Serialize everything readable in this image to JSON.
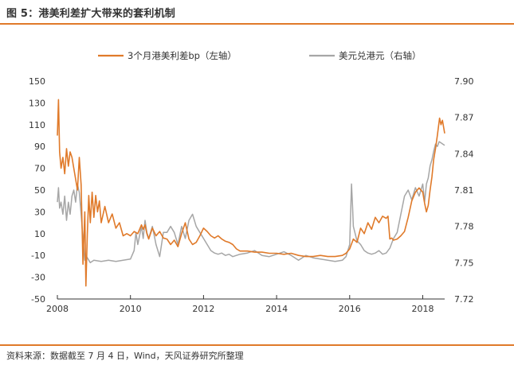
{
  "figure": {
    "title": "图 5：港美利差扩大带来的套利机制",
    "source": "资料来源：数据截至 7 月 4 日，Wind，天风证券研究所整理"
  },
  "colors": {
    "spread": "#e07a2a",
    "hkd": "#a6a6a6",
    "axis": "#333333",
    "rule": "#e07a2a"
  },
  "chart_data": {
    "type": "line",
    "x_ticks": [
      "2008",
      "2010",
      "2012",
      "2014",
      "2016",
      "2018"
    ],
    "x_range": [
      2008,
      2018.6
    ],
    "y_left": {
      "ticks": [
        "150",
        "130",
        "110",
        "90",
        "70",
        "50",
        "30",
        "10",
        "-10",
        "-30",
        "-50"
      ],
      "range": [
        -50,
        150
      ]
    },
    "y_right": {
      "ticks": [
        "7.90",
        "7.87",
        "7.84",
        "7.81",
        "7.78",
        "7.75",
        "7.72"
      ],
      "range": [
        7.72,
        7.9
      ]
    },
    "legend_position": "top",
    "series": [
      {
        "name": "3个月港美利差bp（左轴）",
        "axis": "left",
        "points": [
          [
            2008.0,
            100
          ],
          [
            2008.03,
            133
          ],
          [
            2008.06,
            85
          ],
          [
            2008.1,
            70
          ],
          [
            2008.15,
            80
          ],
          [
            2008.2,
            65
          ],
          [
            2008.25,
            88
          ],
          [
            2008.3,
            72
          ],
          [
            2008.35,
            85
          ],
          [
            2008.4,
            80
          ],
          [
            2008.45,
            70
          ],
          [
            2008.5,
            60
          ],
          [
            2008.55,
            50
          ],
          [
            2008.6,
            80
          ],
          [
            2008.65,
            55
          ],
          [
            2008.7,
            -18
          ],
          [
            2008.75,
            30
          ],
          [
            2008.78,
            -38
          ],
          [
            2008.82,
            10
          ],
          [
            2008.86,
            45
          ],
          [
            2008.9,
            20
          ],
          [
            2008.95,
            48
          ],
          [
            2009.0,
            25
          ],
          [
            2009.05,
            45
          ],
          [
            2009.1,
            30
          ],
          [
            2009.15,
            40
          ],
          [
            2009.2,
            20
          ],
          [
            2009.3,
            35
          ],
          [
            2009.4,
            20
          ],
          [
            2009.5,
            28
          ],
          [
            2009.6,
            15
          ],
          [
            2009.7,
            20
          ],
          [
            2009.8,
            8
          ],
          [
            2009.9,
            10
          ],
          [
            2010.0,
            8
          ],
          [
            2010.1,
            12
          ],
          [
            2010.2,
            10
          ],
          [
            2010.3,
            18
          ],
          [
            2010.35,
            14
          ],
          [
            2010.4,
            18
          ],
          [
            2010.45,
            10
          ],
          [
            2010.5,
            5
          ],
          [
            2010.6,
            15
          ],
          [
            2010.7,
            8
          ],
          [
            2010.8,
            12
          ],
          [
            2010.9,
            6
          ],
          [
            2011.0,
            5
          ],
          [
            2011.1,
            0
          ],
          [
            2011.2,
            4
          ],
          [
            2011.3,
            -2
          ],
          [
            2011.4,
            10
          ],
          [
            2011.5,
            20
          ],
          [
            2011.6,
            5
          ],
          [
            2011.7,
            0
          ],
          [
            2011.8,
            2
          ],
          [
            2011.9,
            8
          ],
          [
            2012.0,
            15
          ],
          [
            2012.1,
            12
          ],
          [
            2012.2,
            8
          ],
          [
            2012.3,
            6
          ],
          [
            2012.4,
            8
          ],
          [
            2012.5,
            5
          ],
          [
            2012.6,
            3
          ],
          [
            2012.7,
            2
          ],
          [
            2012.8,
            0
          ],
          [
            2012.9,
            -4
          ],
          [
            2013.0,
            -6
          ],
          [
            2013.2,
            -6
          ],
          [
            2013.4,
            -7
          ],
          [
            2013.6,
            -7
          ],
          [
            2013.8,
            -8
          ],
          [
            2014.0,
            -8
          ],
          [
            2014.2,
            -9
          ],
          [
            2014.4,
            -8
          ],
          [
            2014.6,
            -10
          ],
          [
            2014.8,
            -11
          ],
          [
            2015.0,
            -11
          ],
          [
            2015.2,
            -10
          ],
          [
            2015.4,
            -11
          ],
          [
            2015.6,
            -11
          ],
          [
            2015.8,
            -10
          ],
          [
            2015.9,
            -8
          ],
          [
            2016.0,
            -4
          ],
          [
            2016.1,
            5
          ],
          [
            2016.2,
            2
          ],
          [
            2016.3,
            15
          ],
          [
            2016.4,
            10
          ],
          [
            2016.5,
            20
          ],
          [
            2016.6,
            14
          ],
          [
            2016.7,
            25
          ],
          [
            2016.8,
            20
          ],
          [
            2016.9,
            26
          ],
          [
            2017.0,
            24
          ],
          [
            2017.05,
            26
          ],
          [
            2017.1,
            5
          ],
          [
            2017.15,
            6
          ],
          [
            2017.2,
            4
          ],
          [
            2017.3,
            5
          ],
          [
            2017.4,
            8
          ],
          [
            2017.5,
            12
          ],
          [
            2017.6,
            25
          ],
          [
            2017.7,
            40
          ],
          [
            2017.8,
            48
          ],
          [
            2017.9,
            52
          ],
          [
            2018.0,
            48
          ],
          [
            2018.05,
            38
          ],
          [
            2018.1,
            30
          ],
          [
            2018.15,
            36
          ],
          [
            2018.2,
            50
          ],
          [
            2018.25,
            62
          ],
          [
            2018.3,
            78
          ],
          [
            2018.35,
            88
          ],
          [
            2018.4,
            100
          ],
          [
            2018.43,
            108
          ],
          [
            2018.46,
            116
          ],
          [
            2018.5,
            110
          ],
          [
            2018.54,
            114
          ],
          [
            2018.57,
            108
          ],
          [
            2018.6,
            102
          ]
        ]
      },
      {
        "name": "美元兑港元（右轴）",
        "axis": "right",
        "points": [
          [
            2008.0,
            7.8
          ],
          [
            2008.03,
            7.812
          ],
          [
            2008.06,
            7.795
          ],
          [
            2008.1,
            7.8
          ],
          [
            2008.15,
            7.79
          ],
          [
            2008.2,
            7.805
          ],
          [
            2008.25,
            7.785
          ],
          [
            2008.3,
            7.8
          ],
          [
            2008.35,
            7.79
          ],
          [
            2008.4,
            7.805
          ],
          [
            2008.45,
            7.81
          ],
          [
            2008.5,
            7.8
          ],
          [
            2008.55,
            7.815
          ],
          [
            2008.6,
            7.808
          ],
          [
            2008.65,
            7.79
          ],
          [
            2008.7,
            7.77
          ],
          [
            2008.75,
            7.752
          ],
          [
            2008.8,
            7.755
          ],
          [
            2008.9,
            7.75
          ],
          [
            2009.0,
            7.752
          ],
          [
            2009.2,
            7.751
          ],
          [
            2009.4,
            7.752
          ],
          [
            2009.6,
            7.751
          ],
          [
            2009.8,
            7.752
          ],
          [
            2010.0,
            7.753
          ],
          [
            2010.1,
            7.76
          ],
          [
            2010.15,
            7.775
          ],
          [
            2010.2,
            7.765
          ],
          [
            2010.3,
            7.78
          ],
          [
            2010.35,
            7.77
          ],
          [
            2010.4,
            7.785
          ],
          [
            2010.45,
            7.775
          ],
          [
            2010.5,
            7.77
          ],
          [
            2010.6,
            7.78
          ],
          [
            2010.7,
            7.765
          ],
          [
            2010.8,
            7.755
          ],
          [
            2010.9,
            7.775
          ],
          [
            2011.0,
            7.775
          ],
          [
            2011.1,
            7.78
          ],
          [
            2011.2,
            7.775
          ],
          [
            2011.3,
            7.765
          ],
          [
            2011.4,
            7.78
          ],
          [
            2011.5,
            7.77
          ],
          [
            2011.6,
            7.785
          ],
          [
            2011.7,
            7.79
          ],
          [
            2011.8,
            7.78
          ],
          [
            2011.9,
            7.775
          ],
          [
            2012.0,
            7.77
          ],
          [
            2012.1,
            7.765
          ],
          [
            2012.2,
            7.76
          ],
          [
            2012.3,
            7.758
          ],
          [
            2012.4,
            7.757
          ],
          [
            2012.5,
            7.758
          ],
          [
            2012.6,
            7.756
          ],
          [
            2012.7,
            7.757
          ],
          [
            2012.8,
            7.755
          ],
          [
            2013.0,
            7.757
          ],
          [
            2013.2,
            7.758
          ],
          [
            2013.4,
            7.76
          ],
          [
            2013.6,
            7.756
          ],
          [
            2013.8,
            7.755
          ],
          [
            2014.0,
            7.757
          ],
          [
            2014.2,
            7.759
          ],
          [
            2014.4,
            7.756
          ],
          [
            2014.6,
            7.752
          ],
          [
            2014.8,
            7.756
          ],
          [
            2015.0,
            7.754
          ],
          [
            2015.2,
            7.753
          ],
          [
            2015.4,
            7.752
          ],
          [
            2015.6,
            7.751
          ],
          [
            2015.8,
            7.752
          ],
          [
            2015.9,
            7.755
          ],
          [
            2016.0,
            7.765
          ],
          [
            2016.05,
            7.815
          ],
          [
            2016.08,
            7.795
          ],
          [
            2016.1,
            7.78
          ],
          [
            2016.2,
            7.768
          ],
          [
            2016.3,
            7.765
          ],
          [
            2016.4,
            7.76
          ],
          [
            2016.5,
            7.758
          ],
          [
            2016.6,
            7.757
          ],
          [
            2016.7,
            7.758
          ],
          [
            2016.8,
            7.76
          ],
          [
            2016.9,
            7.757
          ],
          [
            2017.0,
            7.758
          ],
          [
            2017.1,
            7.762
          ],
          [
            2017.2,
            7.77
          ],
          [
            2017.3,
            7.775
          ],
          [
            2017.4,
            7.79
          ],
          [
            2017.5,
            7.805
          ],
          [
            2017.6,
            7.81
          ],
          [
            2017.7,
            7.802
          ],
          [
            2017.8,
            7.812
          ],
          [
            2017.9,
            7.805
          ],
          [
            2018.0,
            7.815
          ],
          [
            2018.05,
            7.8
          ],
          [
            2018.1,
            7.815
          ],
          [
            2018.15,
            7.82
          ],
          [
            2018.2,
            7.83
          ],
          [
            2018.25,
            7.835
          ],
          [
            2018.3,
            7.842
          ],
          [
            2018.35,
            7.848
          ],
          [
            2018.4,
            7.846
          ],
          [
            2018.45,
            7.85
          ],
          [
            2018.5,
            7.849
          ],
          [
            2018.55,
            7.848
          ],
          [
            2018.6,
            7.847
          ]
        ]
      }
    ]
  }
}
